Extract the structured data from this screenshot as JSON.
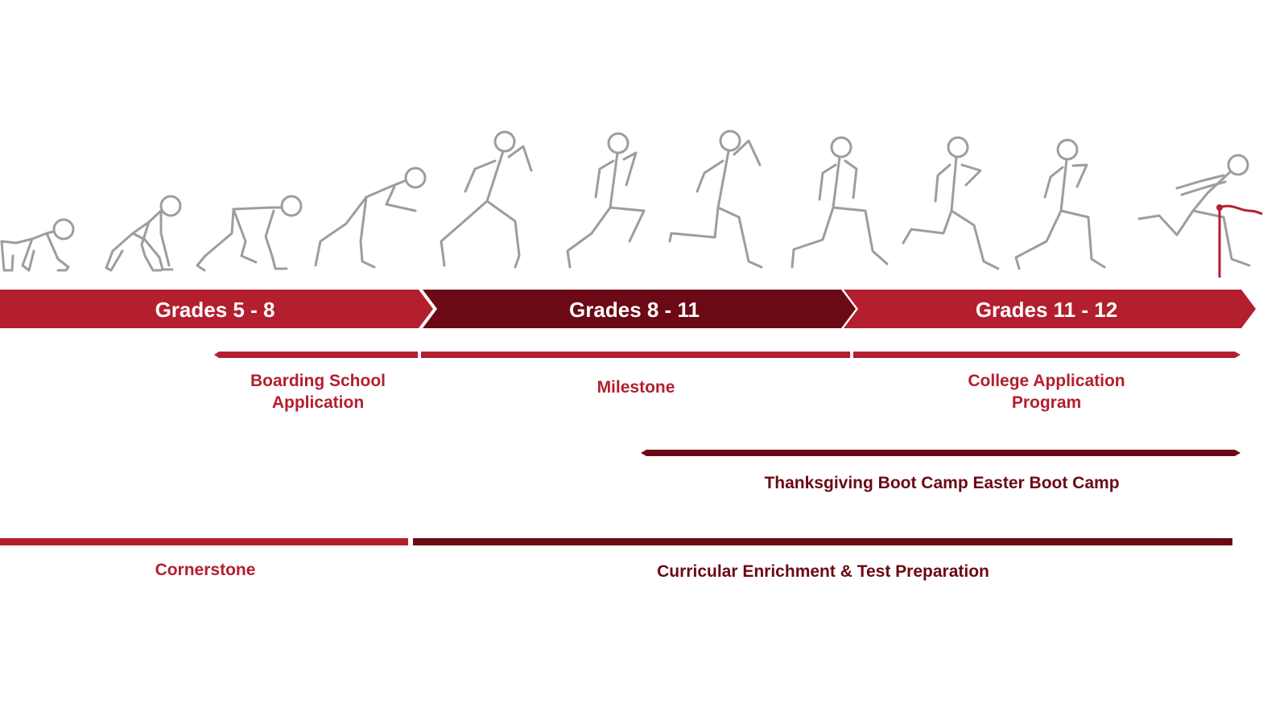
{
  "colors": {
    "red": "#b31f2e",
    "dark_red": "#6b0914",
    "figure_gray": "#9d9d9f",
    "background": "#ffffff"
  },
  "stages": [
    {
      "label": "Grades 5 - 8"
    },
    {
      "label": "Grades 8 - 11"
    },
    {
      "label": "Grades 11 - 12"
    }
  ],
  "programs": {
    "boarding": {
      "label": "Boarding School Application"
    },
    "milestone": {
      "label": "Milestone"
    },
    "college": {
      "label": "College Application Program"
    },
    "bootcamp": {
      "label": "Thanksgiving Boot Camp Easter Boot Camp"
    },
    "cornerstone": {
      "label": "Cornerstone"
    },
    "enrichment": {
      "label": "Curricular Enrichment & Test Preparation"
    }
  },
  "runner_sequence": {
    "icon": "runner-figure-icon",
    "count": 11,
    "final_icon": "finish-line-tape-icon"
  }
}
